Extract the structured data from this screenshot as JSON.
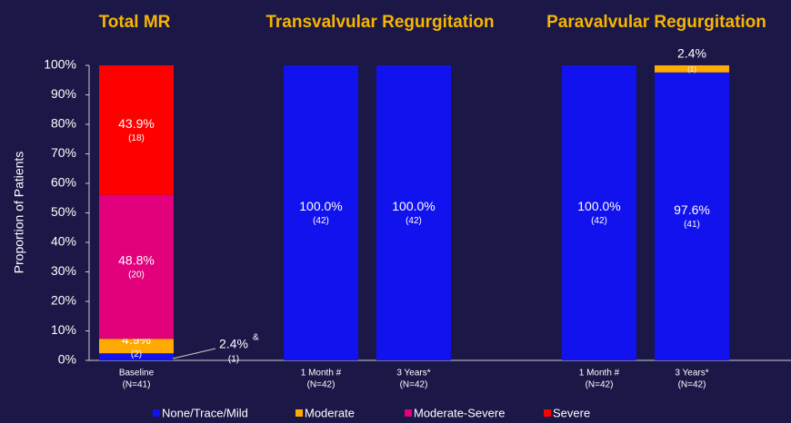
{
  "chart_data": {
    "type": "stacked_bar",
    "group_titles": [
      "Total MR",
      "Transvalvular Regurgitation",
      "Paravalvular Regurgitation"
    ],
    "y_label": "Proportion of Patients",
    "categories": [
      "Baseline",
      "1 Month #",
      "3 Years*",
      "1 Month #",
      "3 Years*"
    ],
    "category_n": [
      "(N=41)",
      "(N=42)",
      "(N=42)",
      "(N=42)",
      "(N=42)"
    ],
    "series": [
      {
        "name": "None/Trace/Mild",
        "color": "#1212ee",
        "values": [
          2.4,
          100,
          100,
          100,
          97.6
        ],
        "value_labels": [
          "2.4%",
          "100.0%",
          "100.0%",
          "100.0%",
          "97.6%"
        ],
        "count_labels": [
          "(1)",
          "(42)",
          "(42)",
          "(42)",
          "(41)"
        ]
      },
      {
        "name": "Moderate",
        "color": "#ffaa00",
        "values": [
          4.9,
          0,
          0,
          0,
          2.4
        ],
        "value_labels": [
          "4.9%",
          null,
          null,
          null,
          "2.4%"
        ],
        "count_labels": [
          "(2)",
          null,
          null,
          null,
          "(1)"
        ]
      },
      {
        "name": "Moderate-Severe",
        "color": "#e2007d",
        "values": [
          48.8,
          0,
          0,
          0,
          0
        ],
        "value_labels": [
          "48.8%",
          null,
          null,
          null,
          null
        ],
        "count_labels": [
          "(20)",
          null,
          null,
          null,
          null
        ]
      },
      {
        "name": "Severe",
        "color": "#ff0000",
        "values": [
          43.9,
          0,
          0,
          0,
          0
        ],
        "value_labels": [
          "43.9%",
          null,
          null,
          null,
          null
        ],
        "count_labels": [
          "(18)",
          null,
          null,
          null,
          null
        ]
      }
    ],
    "annotation": "&",
    "ylim": [
      0,
      100
    ],
    "yticks": [
      {
        "value": 0,
        "label": "0%"
      },
      {
        "value": 10,
        "label": "10%"
      },
      {
        "value": 20,
        "label": "20%"
      },
      {
        "value": 30,
        "label": "30%"
      },
      {
        "value": 40,
        "label": "40%"
      },
      {
        "value": 50,
        "label": "50%"
      },
      {
        "value": 60,
        "label": "60%"
      },
      {
        "value": 70,
        "label": "70%"
      },
      {
        "value": 80,
        "label": "80%"
      },
      {
        "value": 90,
        "label": "90%"
      },
      {
        "value": 100,
        "label": "100%"
      }
    ]
  }
}
